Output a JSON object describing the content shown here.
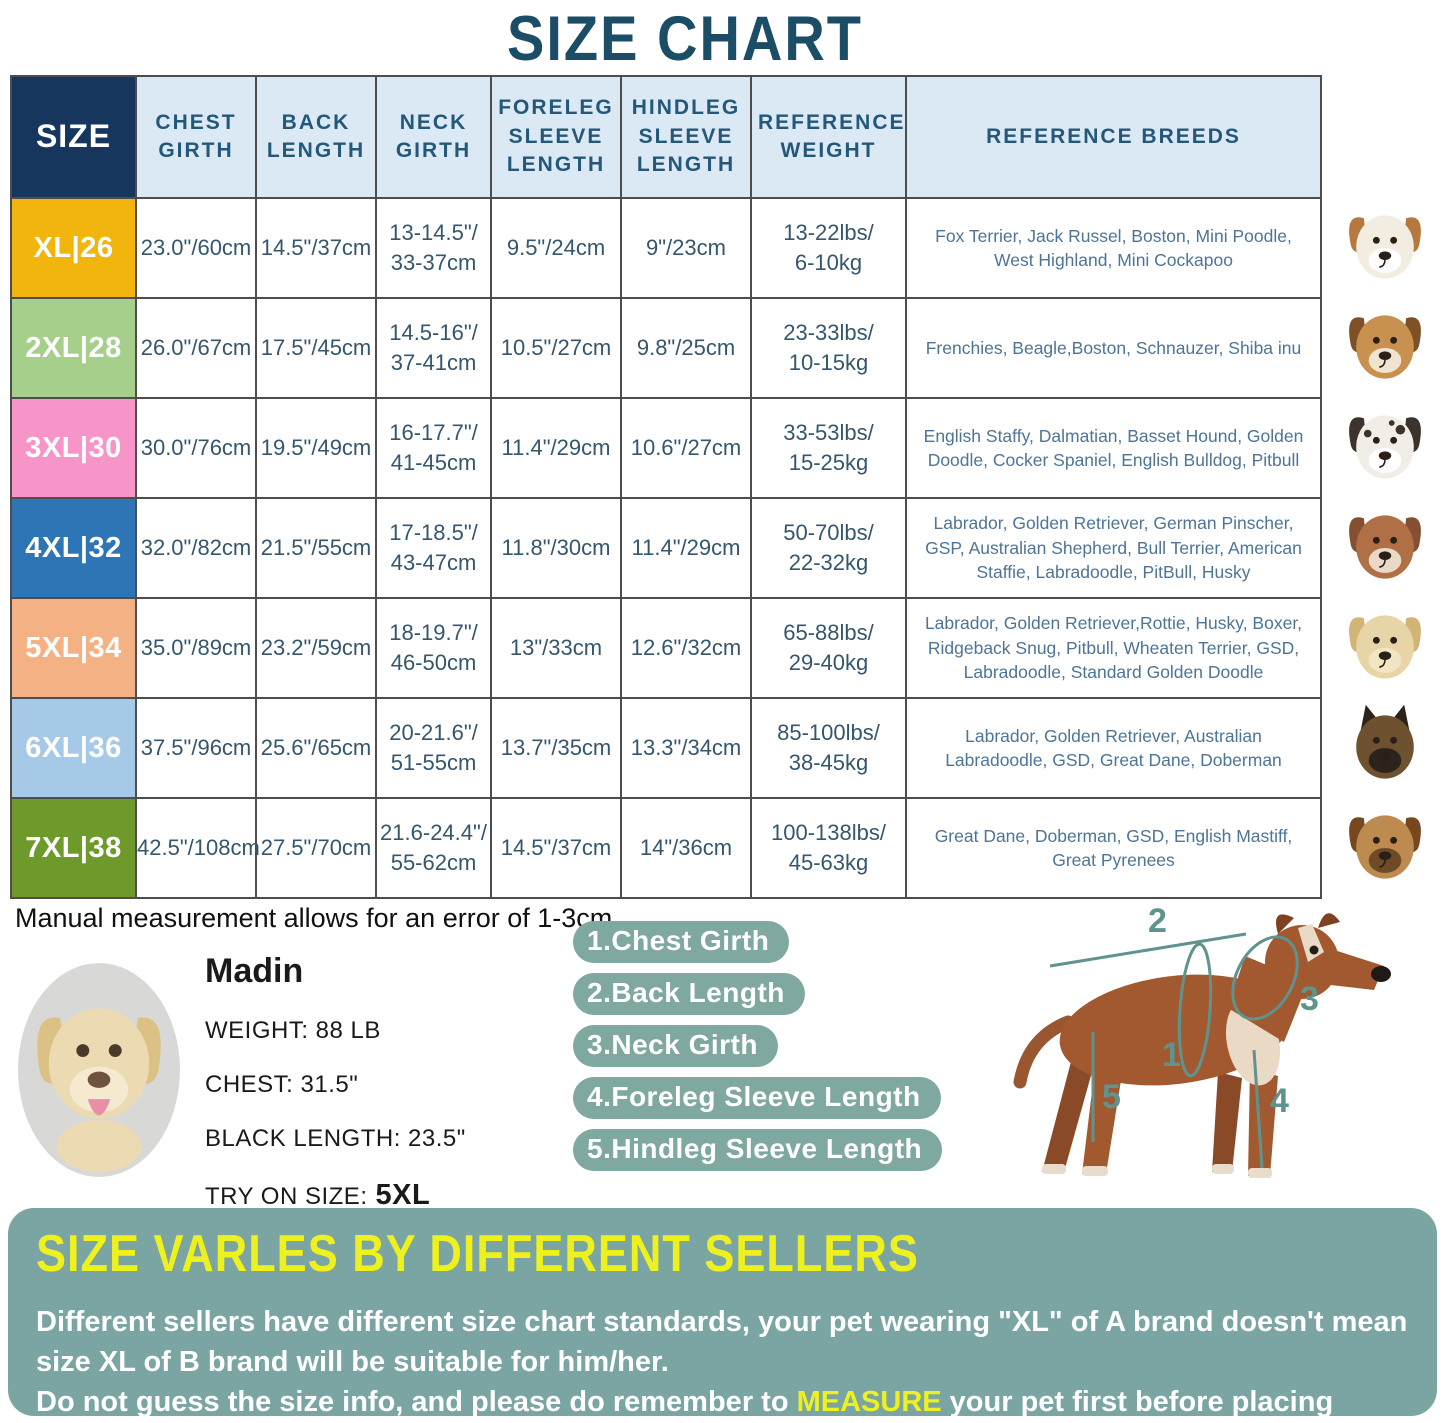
{
  "title": "SIZE CHART",
  "note": "Manual measurement allows for an error of 1-3cm",
  "table": {
    "headers": [
      "SIZE",
      "CHEST GIRTH",
      "BACK LENGTH",
      "NECK GIRTH",
      "FORELEG SLEEVE LENGTH",
      "HINDLEG SLEEVE LENGTH",
      "REFERENCE WEIGHT",
      "REFERENCE BREEDS"
    ],
    "rows": [
      {
        "size": "XL|26",
        "color": "#f2b50e",
        "chest_girth": "23.0\"/60cm",
        "back_length": "14.5\"/37cm",
        "neck_girth": "13-14.5\"/\n33-37cm",
        "foreleg_sleeve": "9.5\"/24cm",
        "hindleg_sleeve": "9\"/23cm",
        "weight": "13-22lbs/\n6-10kg",
        "breeds": "Fox Terrier, Jack Russel, Boston, Mini Poodle, West Highland, Mini Cockapoo",
        "photo": "jack-russell-photo"
      },
      {
        "size": "2XL|28",
        "color": "#a7cf8c",
        "chest_girth": "26.0\"/67cm",
        "back_length": "17.5\"/45cm",
        "neck_girth": "14.5-16\"/\n37-41cm",
        "foreleg_sleeve": "10.5\"/27cm",
        "hindleg_sleeve": "9.8\"/25cm",
        "weight": "23-33lbs/\n10-15kg",
        "breeds": "Frenchies, Beagle,Boston, Schnauzer, Shiba inu",
        "photo": "beagle-photo"
      },
      {
        "size": "3XL|30",
        "color": "#f795c9",
        "chest_girth": "30.0\"/76cm",
        "back_length": "19.5\"/49cm",
        "neck_girth": "16-17.7\"/\n41-45cm",
        "foreleg_sleeve": "11.4\"/29cm",
        "hindleg_sleeve": "10.6\"/27cm",
        "weight": "33-53lbs/\n15-25kg",
        "breeds": "English Staffy, Dalmatian, Basset Hound, Golden Doodle, Cocker Spaniel, English Bulldog, Pitbull",
        "photo": "dalmatian-photo"
      },
      {
        "size": "4XL|32",
        "color": "#2e75b6",
        "chest_girth": "32.0\"/82cm",
        "back_length": "21.5\"/55cm",
        "neck_girth": "17-18.5\"/\n43-47cm",
        "foreleg_sleeve": "11.8\"/30cm",
        "hindleg_sleeve": "11.4\"/29cm",
        "weight": "50-70lbs/\n22-32kg",
        "breeds": "Labrador, Golden Retriever, German Pinscher, GSP, Australian Shepherd, Bull Terrier, American Staffie, Labradoodle, PitBull, Husky",
        "photo": "amstaff-photo"
      },
      {
        "size": "5XL|34",
        "color": "#f4b183",
        "chest_girth": "35.0\"/89cm",
        "back_length": "23.2\"/59cm",
        "neck_girth": "18-19.7\"/\n46-50cm",
        "foreleg_sleeve": "13\"/33cm",
        "hindleg_sleeve": "12.6\"/32cm",
        "weight": "65-88lbs/\n29-40kg",
        "breeds": "Labrador, Golden Retriever,Rottie, Husky, Boxer, Ridgeback Snug, Pitbull, Wheaten Terrier, GSD, Labradoodle,  Standard Golden Doodle",
        "photo": "labrador-photo"
      },
      {
        "size": "6XL|36",
        "color": "#a6c9e8",
        "chest_girth": "37.5\"/96cm",
        "back_length": "25.6\"/65cm",
        "neck_girth": "20-21.6\"/\n51-55cm",
        "foreleg_sleeve": "13.7\"/35cm",
        "hindleg_sleeve": "13.3\"/34cm",
        "weight": "85-100lbs/\n38-45kg",
        "breeds": "Labrador, Golden Retriever, Australian Labradoodle, GSD, Great Dane, Doberman",
        "photo": "german-shepherd-photo"
      },
      {
        "size": "7XL|38",
        "color": "#6d9a2b",
        "chest_girth": "42.5\"/108cm",
        "back_length": "27.5\"/70cm",
        "neck_girth": "21.6-24.4\"/\n55-62cm",
        "foreleg_sleeve": "14.5\"/37cm",
        "hindleg_sleeve": "14\"/36cm",
        "weight": "100-138lbs/\n45-63kg",
        "breeds": "Great Dane, Doberman, GSD, English Mastiff, Great Pyrenees",
        "photo": "great-dane-photo"
      }
    ]
  },
  "dog_profile": {
    "name": "Madin",
    "weight": "WEIGHT: 88 LB",
    "chest": "CHEST: 31.5\"",
    "back_length": "BLACK LENGTH: 23.5\"",
    "try_on_label": "TRY ON SIZE:",
    "try_on_size": "5XL"
  },
  "measure_labels": [
    "1.Chest Girth",
    "2.Back Length",
    "3.Neck Girth",
    "4.Foreleg Sleeve Length",
    "5.Hindleg Sleeve Length"
  ],
  "diagram": [
    "1",
    "2",
    "3",
    "4",
    "5"
  ],
  "banner": {
    "headline": "SIZE VARLES BY DIFFERENT SELLERS",
    "line1": "Different sellers have different size chart standards, your pet wearing \"XL\" of A brand doesn't mean size XL of B brand will be suitable for him/her.",
    "line2_pre": "Do not guess the size info, and please do remember to ",
    "line2_highlight": "MEASURE",
    "line2_post": " your pet first before placing order."
  },
  "colors": {
    "title": "#1c4d66",
    "table_border": "#4d4d4d",
    "header_bg": "#dbe9f5",
    "header_text": "#24587a",
    "size_header_bg": "#17365d",
    "value_text": "#35566c",
    "breeds_text": "#4e7496",
    "pill_bg": "#7fa8a1",
    "banner_bg": "#7aa5a3",
    "banner_headline": "#eef11e",
    "banner_text": "#ffffff",
    "highlight": "#eef11e",
    "diagram_line": "#5f938e"
  }
}
